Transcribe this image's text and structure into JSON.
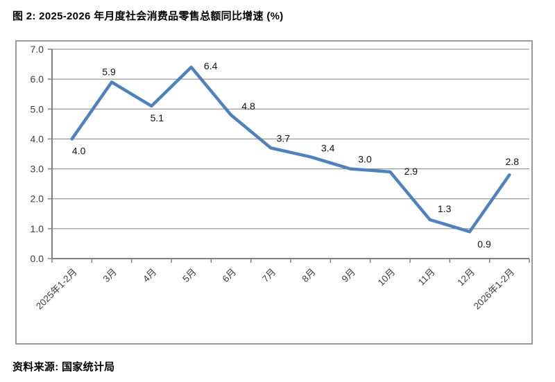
{
  "figure": {
    "title": "图 2: 2025-2026 年月度社会消费品零售总额同比增速 (%)",
    "source": "资料来源: 国家统计局"
  },
  "chart_data": {
    "type": "line",
    "title": "2025-2026 年月度社会消费品零售总额同比增速 (%)",
    "categories": [
      "2025年1-2月",
      "3月",
      "4月",
      "5月",
      "6月",
      "7月",
      "8月",
      "9月",
      "10月",
      "11月",
      "12月",
      "2026年1-2月"
    ],
    "values": [
      4.0,
      5.9,
      5.1,
      6.4,
      4.8,
      3.7,
      3.4,
      3.0,
      2.9,
      1.3,
      0.9,
      2.8
    ],
    "data_labels": [
      "4.0",
      "5.9",
      "5.1",
      "6.4",
      "4.8",
      "3.7",
      "3.4",
      "3.0",
      "2.9",
      "1.3",
      "0.9",
      "2.8"
    ],
    "xlabel": "",
    "ylabel": "",
    "ylim": [
      0.0,
      7.0
    ],
    "ytick_step": 1.0,
    "ytick_labels": [
      "0.0",
      "1.0",
      "2.0",
      "3.0",
      "4.0",
      "5.0",
      "6.0",
      "7.0"
    ],
    "grid": "horizontal",
    "legend": "none",
    "line_color": "#4F81BD",
    "gridline_color": "#808080",
    "axis_color": "#808080",
    "tick_label_color": "#3c3c3c",
    "data_label_color": "#111111"
  }
}
